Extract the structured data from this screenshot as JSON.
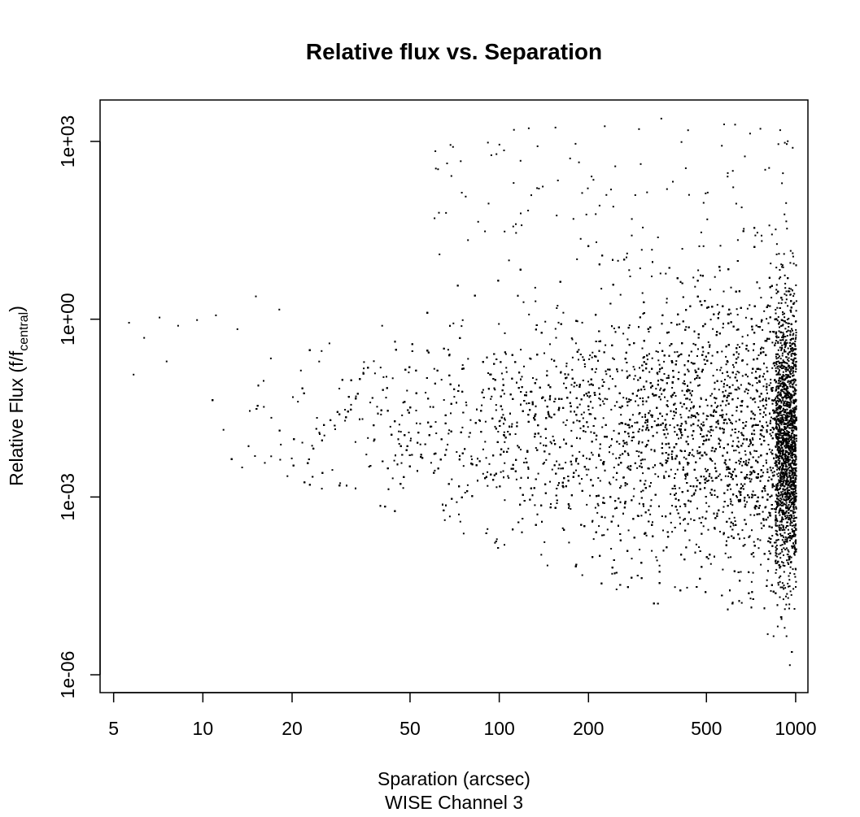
{
  "chart_data": {
    "type": "scatter",
    "title": "Relative flux vs. Separation",
    "xlabel": "Sparation (arcsec)",
    "xlabel_sub": "WISE Channel 3",
    "ylabel_main": "Relative Flux (f/f",
    "ylabel_sub": "central",
    "ylabel_end": ")",
    "x_scale": "log",
    "y_scale": "log",
    "xlim": [
      4.5,
      1100
    ],
    "ylim": [
      5e-07,
      5000
    ],
    "x_ticks": [
      5,
      10,
      20,
      50,
      100,
      200,
      500,
      1000
    ],
    "x_tick_labels": [
      "5",
      "10",
      "20",
      "50",
      "100",
      "200",
      "500",
      "1000"
    ],
    "y_ticks": [
      1e-06,
      0.001,
      1,
      1000
    ],
    "y_tick_labels": [
      "1e-06",
      "1e-03",
      "1e+00",
      "1e+03"
    ],
    "grid": false,
    "legend": "none",
    "point_color": "#000000",
    "points_note": "dense cloud: flux spread widens with separation; core near 1e-02, upper envelope ~1e+02 at 1000 arcsec, lower envelope ~1e-06 at 1000 arcsec",
    "points_sample": [
      [
        5.6,
        0.9
      ],
      [
        5.8,
        0.12
      ],
      [
        6.3,
        0.5
      ],
      [
        7.1,
        1.1
      ],
      [
        7.5,
        0.2
      ],
      [
        8.2,
        0.8
      ],
      [
        9.5,
        1.0
      ],
      [
        11,
        1.2
      ],
      [
        13,
        0.7
      ],
      [
        15,
        2.5
      ],
      [
        18,
        1.5
      ],
      [
        20,
        0.05
      ],
      [
        25,
        0.3
      ],
      [
        30,
        0.02
      ],
      [
        40,
        0.8
      ],
      [
        50,
        0.01
      ],
      [
        60,
        0.15
      ],
      [
        80,
        0.005
      ],
      [
        100,
        0.02
      ],
      [
        120,
        2.0
      ],
      [
        150,
        0.003
      ],
      [
        200,
        0.05
      ],
      [
        250,
        10
      ],
      [
        300,
        0.0005
      ],
      [
        350,
        2500
      ],
      [
        400,
        0.01
      ],
      [
        500,
        50
      ],
      [
        570,
        2000
      ],
      [
        600,
        0.0001
      ],
      [
        700,
        2e-05
      ],
      [
        800,
        5e-06
      ],
      [
        900,
        300
      ],
      [
        950,
        1.5e-06
      ],
      [
        1000,
        0.01
      ]
    ]
  }
}
